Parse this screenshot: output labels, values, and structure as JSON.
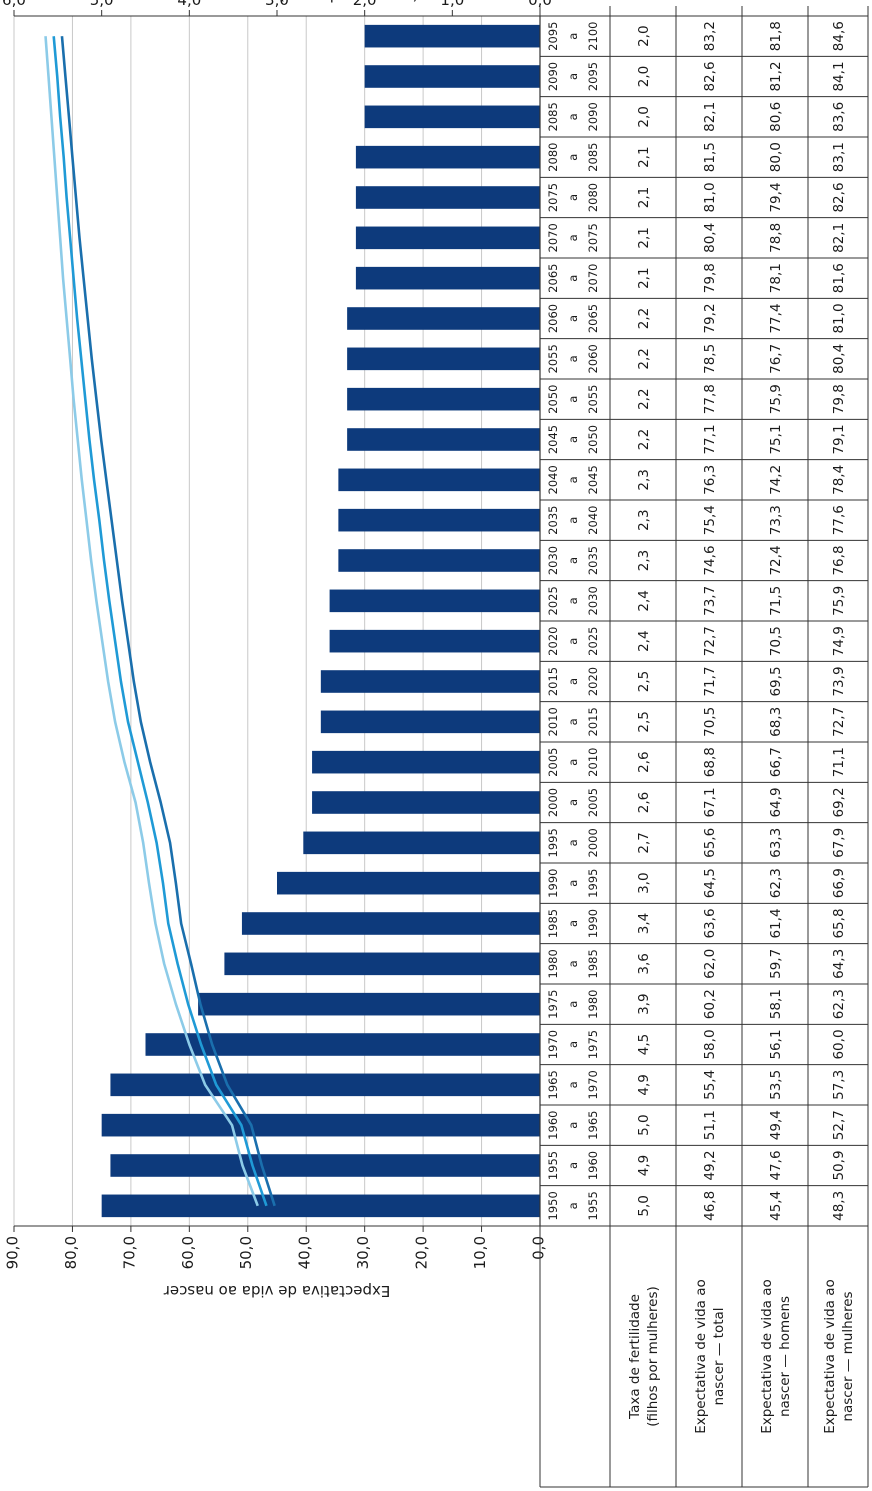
{
  "chart_data": {
    "type": "bar",
    "left_axis": {
      "title": "Expectativa de vida ao nascer",
      "ylim": [
        0,
        90
      ],
      "ticks": [
        "0,0",
        "10,0",
        "20,0",
        "30,0",
        "40,0",
        "50,0",
        "60,0",
        "70,0",
        "80,0",
        "90,0"
      ]
    },
    "right_axis": {
      "title": "Taxa de fertilidade (filhos por mulher)",
      "ylim": [
        0,
        6
      ],
      "ticks": [
        "0,0",
        "1,0",
        "2,0",
        "3,0",
        "4,0",
        "5,0",
        "6,0"
      ]
    },
    "grid": true,
    "periods": [
      [
        "1950",
        "a",
        "1955"
      ],
      [
        "1955",
        "a",
        "1960"
      ],
      [
        "1960",
        "a",
        "1965"
      ],
      [
        "1965",
        "a",
        "1970"
      ],
      [
        "1970",
        "a",
        "1975"
      ],
      [
        "1975",
        "a",
        "1980"
      ],
      [
        "1980",
        "a",
        "1985"
      ],
      [
        "1985",
        "a",
        "1990"
      ],
      [
        "1990",
        "a",
        "1995"
      ],
      [
        "1995",
        "a",
        "2000"
      ],
      [
        "2000",
        "a",
        "2005"
      ],
      [
        "2005",
        "a",
        "2010"
      ],
      [
        "2010",
        "a",
        "2015"
      ],
      [
        "2015",
        "a",
        "2020"
      ],
      [
        "2020",
        "a",
        "2025"
      ],
      [
        "2025",
        "a",
        "2030"
      ],
      [
        "2030",
        "a",
        "2035"
      ],
      [
        "2035",
        "a",
        "2040"
      ],
      [
        "2040",
        "a",
        "2045"
      ],
      [
        "2045",
        "a",
        "2050"
      ],
      [
        "2050",
        "a",
        "2055"
      ],
      [
        "2055",
        "a",
        "2060"
      ],
      [
        "2060",
        "a",
        "2065"
      ],
      [
        "2065",
        "a",
        "2070"
      ],
      [
        "2070",
        "a",
        "2075"
      ],
      [
        "2075",
        "a",
        "2080"
      ],
      [
        "2080",
        "a",
        "2085"
      ],
      [
        "2085",
        "a",
        "2090"
      ],
      [
        "2090",
        "a",
        "2095"
      ],
      [
        "2095",
        "a",
        "2100"
      ]
    ],
    "series": [
      {
        "name": "Taxa de fertilidade (filhos por mulheres)",
        "type": "bar",
        "axis": "right",
        "color": "#0d3a7c",
        "values": [
          5.0,
          4.9,
          5.0,
          4.9,
          4.5,
          3.9,
          3.6,
          3.4,
          3.0,
          2.7,
          2.6,
          2.6,
          2.5,
          2.5,
          2.4,
          2.4,
          2.3,
          2.3,
          2.3,
          2.2,
          2.2,
          2.2,
          2.2,
          2.1,
          2.1,
          2.1,
          2.1,
          2.0,
          2.0,
          2.0
        ],
        "labels": [
          "5,0",
          "4,9",
          "5,0",
          "4,9",
          "4,5",
          "3,9",
          "3,6",
          "3,4",
          "3,0",
          "2,7",
          "2,6",
          "2,6",
          "2,5",
          "2,5",
          "2,4",
          "2,4",
          "2,3",
          "2,3",
          "2,3",
          "2,2",
          "2,2",
          "2,2",
          "2,2",
          "2,1",
          "2,1",
          "2,1",
          "2,1",
          "2,0",
          "2,0",
          "2,0"
        ]
      },
      {
        "name": "Expectativa de vida ao nascer — total",
        "type": "line",
        "axis": "left",
        "color": "#1f9ad6",
        "values": [
          46.8,
          49.2,
          51.1,
          55.4,
          58.0,
          60.2,
          62.0,
          63.6,
          64.5,
          65.6,
          67.1,
          68.8,
          70.5,
          71.7,
          72.7,
          73.7,
          74.6,
          75.4,
          76.3,
          77.1,
          77.8,
          78.5,
          79.2,
          79.8,
          80.4,
          81.0,
          81.5,
          82.1,
          82.6,
          83.2
        ],
        "labels": [
          "46,8",
          "49,2",
          "51,1",
          "55,4",
          "58,0",
          "60,2",
          "62,0",
          "63,6",
          "64,5",
          "65,6",
          "67,1",
          "68,8",
          "70,5",
          "71,7",
          "72,7",
          "73,7",
          "74,6",
          "75,4",
          "76,3",
          "77,1",
          "77,8",
          "78,5",
          "79,2",
          "79,8",
          "80,4",
          "81,0",
          "81,5",
          "82,1",
          "82,6",
          "83,2"
        ]
      },
      {
        "name": "Expectativa de vida ao nascer — homens",
        "type": "line",
        "axis": "left",
        "color": "#1a6fad",
        "values": [
          45.4,
          47.6,
          49.4,
          53.5,
          56.1,
          58.1,
          59.7,
          61.4,
          62.3,
          63.3,
          64.9,
          66.7,
          68.3,
          69.5,
          70.5,
          71.5,
          72.4,
          73.3,
          74.2,
          75.1,
          75.9,
          76.7,
          77.4,
          78.1,
          78.8,
          79.4,
          80.0,
          80.6,
          81.2,
          81.8
        ],
        "labels": [
          "45,4",
          "47,6",
          "49,4",
          "53,5",
          "56,1",
          "58,1",
          "59,7",
          "61,4",
          "62,3",
          "63,3",
          "64,9",
          "66,7",
          "68,3",
          "69,5",
          "70,5",
          "71,5",
          "72,4",
          "73,3",
          "74,2",
          "75,1",
          "75,9",
          "76,7",
          "77,4",
          "78,1",
          "78,8",
          "79,4",
          "80,0",
          "80,6",
          "81,2",
          "81,8"
        ]
      },
      {
        "name": "Expectativa de vida ao nascer — mulheres",
        "type": "line",
        "axis": "left",
        "color": "#8ccbe8",
        "values": [
          48.3,
          50.9,
          52.7,
          57.3,
          60.0,
          62.3,
          64.3,
          65.8,
          66.9,
          67.9,
          69.2,
          71.1,
          72.7,
          73.9,
          74.9,
          75.9,
          76.8,
          77.6,
          78.4,
          79.1,
          79.8,
          80.4,
          81.0,
          81.6,
          82.1,
          82.6,
          83.1,
          83.6,
          84.1,
          84.6
        ],
        "labels": [
          "48,3",
          "50,9",
          "52,7",
          "57,3",
          "60,0",
          "62,3",
          "64,3",
          "65,8",
          "66,9",
          "67,9",
          "69,2",
          "71,1",
          "72,7",
          "73,9",
          "74,9",
          "75,9",
          "76,8",
          "77,6",
          "78,4",
          "79,1",
          "79,8",
          "80,4",
          "81,0",
          "81,6",
          "82,1",
          "82,6",
          "83,1",
          "83,6",
          "84,1",
          "84,6"
        ]
      }
    ],
    "table_rows": [
      [
        "Taxa de fertilidade",
        "(filhos por mulheres)"
      ],
      [
        "Expectativa de vida ao",
        "nascer — total"
      ],
      [
        "Expectativa de vida ao",
        "nascer — homens"
      ],
      [
        "Expectativa de vida ao",
        "nascer — mulheres"
      ]
    ]
  }
}
